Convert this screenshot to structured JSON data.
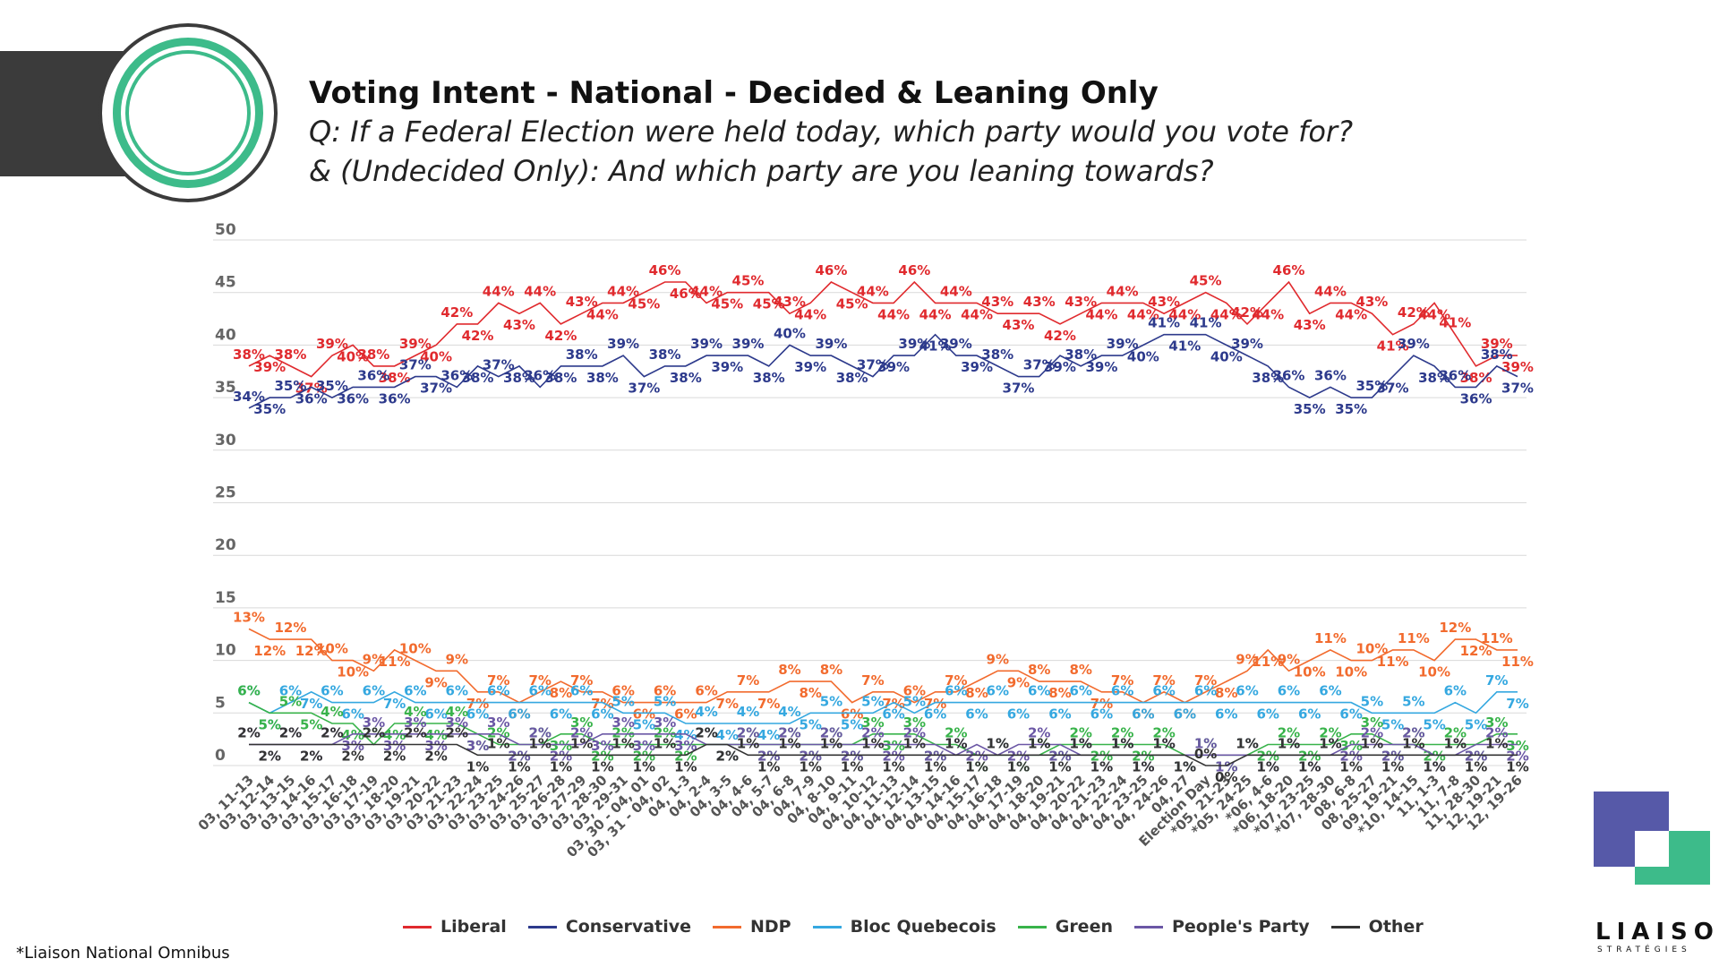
{
  "header": {
    "title": "Voting Intent - National - Decided & Leaning Only",
    "subtitle_line1": "Q: If a Federal Election were held today, which party would you vote for?",
    "subtitle_line2": "& (Undecided Only): And which party are you leaning towards?"
  },
  "source": "*Liaison National Omnibus",
  "brand": {
    "name": "LIAISON",
    "tagline": "STRATÉGIES",
    "green": "#3dbb8a",
    "purple": "#5659a8"
  },
  "chart_data": {
    "type": "line",
    "title": "Voting Intent - National - Decided & Leaning Only",
    "ylim": [
      0,
      50
    ],
    "yticks": [
      0,
      5,
      10,
      15,
      20,
      25,
      30,
      35,
      40,
      45,
      50
    ],
    "grid": true,
    "legend": "bottom",
    "categories": [
      "03, 11-13",
      "03, 12-14",
      "03, 13-15",
      "03, 14-16",
      "03, 15-17",
      "03, 16-18",
      "03, 17-19",
      "03, 18-20",
      "03, 19-21",
      "03, 20-22",
      "03, 21-23",
      "03, 22-24",
      "03, 23-25",
      "03, 24-26",
      "03, 25-27",
      "03, 26-28",
      "03, 27-29",
      "03, 28-30",
      "03, 29-31",
      "03, 30 - 04, 01",
      "03, 31 - 04, 02",
      "04, 1-3",
      "04, 2-4",
      "04, 3-5",
      "04, 4-6",
      "04, 5-7",
      "04, 6-8",
      "04, 7-9",
      "04, 8-10",
      "04, 9-11",
      "04, 10-12",
      "04, 11-13",
      "04, 12-14",
      "04, 13-15",
      "04, 14-16",
      "04, 15-17",
      "04, 16-18",
      "04, 17-19",
      "04, 18-20",
      "04, 19-21",
      "04, 20-22",
      "04, 21-23",
      "04, 22-24",
      "04, 23-25",
      "04, 24-26",
      "04, 27",
      "Election Day",
      "*05, 21-23",
      "*05, 24-25",
      "*06, 4-6",
      "*06, 18-20",
      "*07, 23-25",
      "*07, 28-30",
      "08, 6-8",
      "08, 25-27",
      "09, 19-21",
      "*10, 14-15",
      "11, 1-3",
      "11, 7-8",
      "11, 28-30",
      "12, 19-21",
      "12, 19-26"
    ],
    "series": [
      {
        "name": "Liberal",
        "color": "#e02a2e",
        "values": [
          38,
          39,
          38,
          37,
          39,
          40,
          38,
          38,
          39,
          40,
          42,
          42,
          44,
          43,
          44,
          42,
          43,
          44,
          44,
          45,
          46,
          46,
          44,
          45,
          45,
          45,
          43,
          44,
          46,
          45,
          44,
          44,
          46,
          44,
          44,
          44,
          43,
          43,
          43,
          42,
          43,
          44,
          44,
          44,
          43,
          44,
          45,
          44,
          42,
          44,
          46,
          43,
          44,
          44,
          43,
          41,
          42,
          44,
          41,
          38,
          39,
          39
        ]
      },
      {
        "name": "Conservative",
        "color": "#2d3a8c",
        "values": [
          34,
          35,
          35,
          36,
          35,
          36,
          36,
          36,
          37,
          37,
          36,
          38,
          37,
          38,
          36,
          38,
          38,
          38,
          39,
          37,
          38,
          38,
          39,
          39,
          39,
          38,
          40,
          39,
          39,
          38,
          37,
          39,
          39,
          41,
          39,
          39,
          38,
          37,
          37,
          39,
          38,
          39,
          39,
          40,
          41,
          41,
          41,
          40,
          39,
          38,
          36,
          35,
          36,
          35,
          35,
          37,
          39,
          38,
          36,
          36,
          38,
          37
        ]
      },
      {
        "name": "NDP",
        "color": "#f26b2e",
        "values": [
          13,
          12,
          12,
          12,
          10,
          10,
          9,
          11,
          10,
          9,
          9,
          7,
          7,
          6,
          7,
          8,
          7,
          7,
          6,
          6,
          6,
          6,
          6,
          7,
          7,
          7,
          8,
          8,
          8,
          6,
          7,
          7,
          6,
          7,
          7,
          8,
          9,
          9,
          8,
          8,
          8,
          7,
          7,
          6,
          7,
          6,
          7,
          8,
          9,
          11,
          9,
          10,
          11,
          10,
          10,
          11,
          11,
          10,
          12,
          12,
          11,
          11
        ]
      },
      {
        "name": "Bloc Quebecois",
        "color": "#35a8e0",
        "values": [
          6,
          5,
          6,
          7,
          6,
          6,
          6,
          7,
          6,
          6,
          6,
          6,
          6,
          6,
          6,
          6,
          6,
          6,
          5,
          5,
          5,
          4,
          4,
          4,
          4,
          4,
          4,
          5,
          5,
          5,
          5,
          6,
          5,
          6,
          6,
          6,
          6,
          6,
          6,
          6,
          6,
          6,
          6,
          6,
          6,
          6,
          6,
          6,
          6,
          6,
          6,
          6,
          6,
          6,
          5,
          5,
          5,
          5,
          6,
          5,
          7,
          7
        ]
      },
      {
        "name": "Green",
        "color": "#38b34a",
        "values": [
          6,
          5,
          5,
          5,
          4,
          4,
          2,
          4,
          4,
          4,
          4,
          3,
          2,
          2,
          2,
          3,
          3,
          2,
          2,
          2,
          2,
          2,
          2,
          2,
          2,
          2,
          2,
          2,
          2,
          2,
          3,
          3,
          3,
          2,
          2,
          1,
          1,
          1,
          1,
          2,
          2,
          2,
          2,
          2,
          2,
          1,
          1,
          1,
          1,
          2,
          2,
          2,
          2,
          3,
          3,
          2,
          2,
          2,
          2,
          2,
          3,
          3
        ]
      },
      {
        "name": "People's Party",
        "color": "#6b57a5",
        "values": [
          2,
          2,
          2,
          2,
          2,
          3,
          3,
          3,
          3,
          3,
          3,
          3,
          3,
          2,
          2,
          2,
          2,
          3,
          3,
          3,
          3,
          3,
          2,
          2,
          2,
          2,
          2,
          2,
          2,
          2,
          2,
          2,
          2,
          2,
          1,
          2,
          1,
          2,
          2,
          2,
          1,
          1,
          1,
          1,
          1,
          1,
          1,
          1,
          1,
          1,
          1,
          1,
          1,
          2,
          2,
          2,
          2,
          1,
          1,
          2,
          2,
          2
        ]
      },
      {
        "name": "Other",
        "color": "#333333",
        "values": [
          2,
          2,
          2,
          2,
          2,
          2,
          2,
          2,
          2,
          2,
          2,
          1,
          1,
          1,
          1,
          1,
          1,
          1,
          1,
          1,
          1,
          1,
          2,
          2,
          1,
          1,
          1,
          1,
          1,
          1,
          1,
          1,
          1,
          1,
          1,
          1,
          1,
          1,
          1,
          1,
          1,
          1,
          1,
          1,
          1,
          1,
          0,
          0,
          1,
          1,
          1,
          1,
          1,
          1,
          1,
          1,
          1,
          1,
          1,
          1,
          1,
          1
        ]
      }
    ]
  }
}
